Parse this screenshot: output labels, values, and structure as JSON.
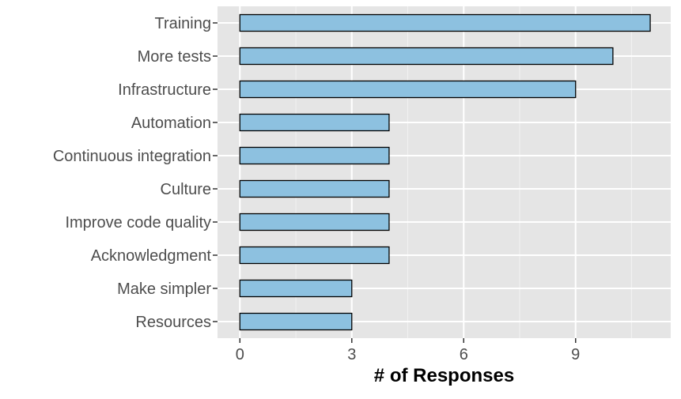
{
  "chart_data": {
    "type": "bar",
    "orientation": "horizontal",
    "categories": [
      "Training",
      "More tests",
      "Infrastructure",
      "Automation",
      "Continuous integration",
      "Culture",
      "Improve code quality",
      "Acknowledgment",
      "Make simpler",
      "Resources"
    ],
    "values": [
      11,
      10,
      9,
      4,
      4,
      4,
      4,
      4,
      3,
      3
    ],
    "xlabel": "# of Responses",
    "ylabel": "",
    "xlim": [
      -0.6,
      11.55
    ],
    "xticks": [
      0,
      3,
      6,
      9
    ],
    "xtick_labels": [
      "0",
      "3",
      "6",
      "9"
    ],
    "grid": true,
    "colors": {
      "bar_fill": "#8dc1e0",
      "bar_stroke": "#000000",
      "panel_bg": "#e5e5e5",
      "grid_major": "#ffffff",
      "grid_minor": "#f2f2f2"
    }
  }
}
